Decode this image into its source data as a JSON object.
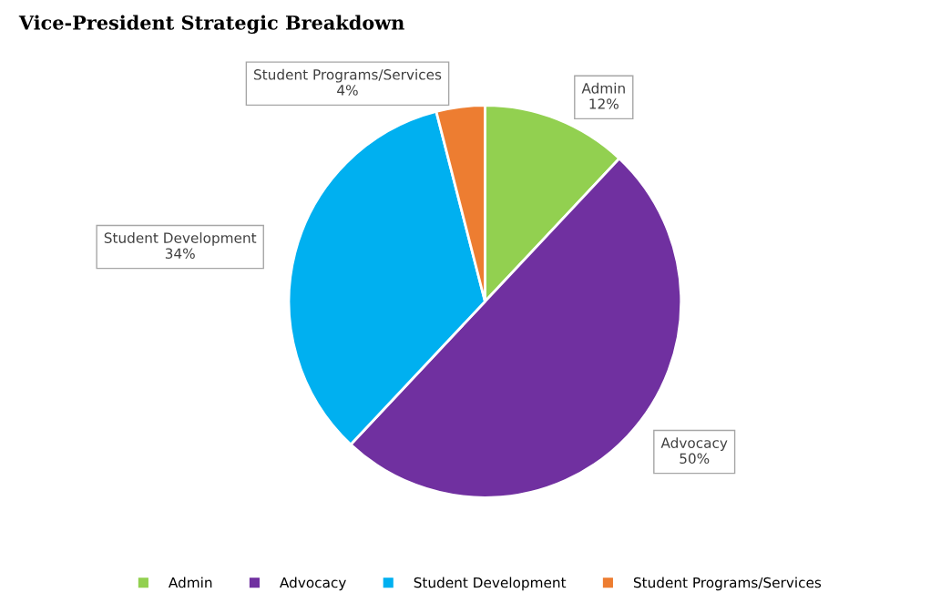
{
  "chart_data": {
    "type": "pie",
    "title": "Vice-President Strategic Breakdown",
    "categories": [
      "Admin",
      "Advocacy",
      "Student Development",
      "Student Programs/Services"
    ],
    "values": [
      12,
      50,
      34,
      4
    ],
    "colors": [
      "#92d050",
      "#7030a0",
      "#00b0f0",
      "#ed7d31"
    ],
    "value_labels": [
      "12%",
      "50%",
      "34%",
      "4%"
    ],
    "legend": "bottom"
  }
}
